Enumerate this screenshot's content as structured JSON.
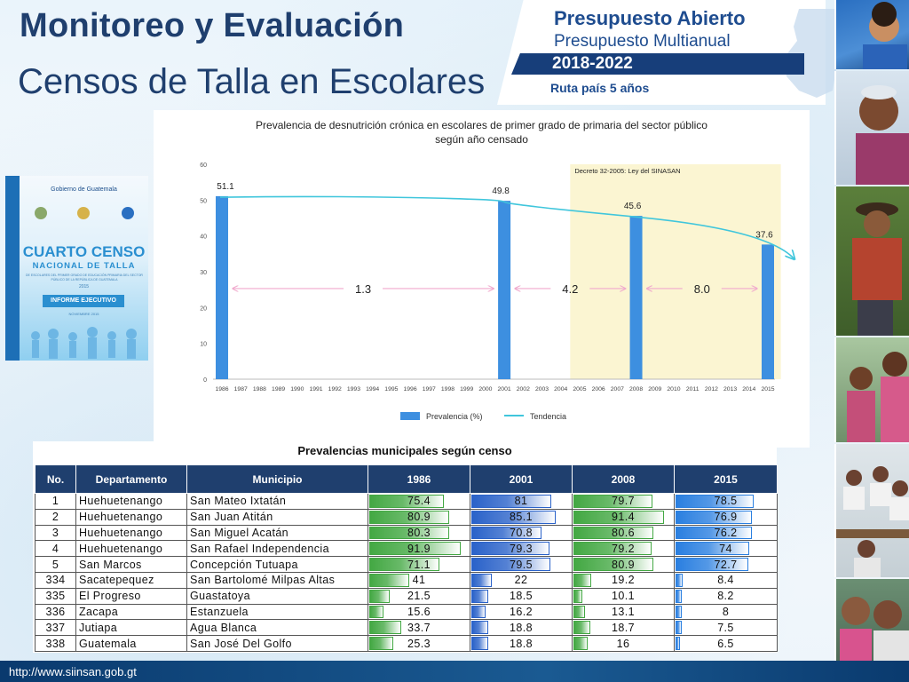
{
  "header": {
    "title": "Monitoreo y Evaluación",
    "subtitle": "Censos de Talla en Escolares"
  },
  "banner": {
    "line1": "Presupuesto Abierto",
    "line2": "Presupuesto Multianual",
    "years": "2018-2022",
    "route": "Ruta país 5 años"
  },
  "booklet": {
    "gov": "Gobierno de Guatemala",
    "title1": "CUARTO CENSO",
    "title2": "NACIONAL DE TALLA",
    "desc": "DE ESCOLARES DEL PRIMER GRADO DE EDUCACIÓN PRIMARIA DEL SECTOR PÚBLICO DE LA REPÚBLICA DE GUATEMALA",
    "year": "2015",
    "report": "INFORME EJECUTIVO",
    "date": "NOVIEMBRE 2015"
  },
  "chart_data": {
    "type": "bar",
    "title_line1": "Prevalencia de desnutrición crónica en escolares de primer grado de primaria del sector público",
    "title_line2": "según año censado",
    "categories": [
      "1986",
      "1987",
      "1988",
      "1989",
      "1990",
      "1991",
      "1992",
      "1993",
      "1994",
      "1995",
      "1996",
      "1997",
      "1998",
      "1999",
      "2000",
      "2001",
      "2002",
      "2003",
      "2004",
      "2005",
      "2006",
      "2007",
      "2008",
      "2009",
      "2010",
      "2011",
      "2012",
      "2013",
      "2014",
      "2015"
    ],
    "series": [
      {
        "name": "Prevalencia (%)",
        "x": [
          "1986",
          "2001",
          "2008",
          "2015"
        ],
        "values": [
          51.1,
          49.8,
          45.6,
          37.6
        ],
        "color": "#3d8fe0"
      }
    ],
    "trend": {
      "name": "Tendencia",
      "color": "#40c6dc"
    },
    "ylim": [
      0,
      60
    ],
    "yticks": [
      0,
      10,
      20,
      30,
      40,
      50,
      60
    ],
    "highlight": {
      "from": "2005",
      "to": "2015",
      "label": "Decreto 32-2005: Ley del SINASAN",
      "color": "#fbf5d2"
    },
    "annotations": [
      {
        "from": "1986",
        "to": "2001",
        "text": "1.3"
      },
      {
        "from": "2001",
        "to": "2008",
        "text": "4.2"
      },
      {
        "from": "2008",
        "to": "2015",
        "text": "8.0"
      }
    ],
    "grid": false,
    "legend": "bottom"
  },
  "table": {
    "title": "Prevalencias municipales según censo",
    "headers": [
      "No.",
      "Departamento",
      "Municipio",
      "1986",
      "2001",
      "2008",
      "2015"
    ],
    "year_colors": [
      "#43a843",
      "#2a62c9",
      "#43a843",
      "#2a7fe0"
    ],
    "rows": [
      {
        "no": "1",
        "dep": "Huehuetenango",
        "mun": "San Mateo Ixtatán",
        "vals": [
          "75.4",
          "81",
          "79.7",
          "78.5"
        ]
      },
      {
        "no": "2",
        "dep": "Huehuetenango",
        "mun": "San Juan Atitán",
        "vals": [
          "80.9",
          "85.1",
          "91.4",
          "76.9"
        ]
      },
      {
        "no": "3",
        "dep": "Huehuetenango",
        "mun": "San Miguel Acatán",
        "vals": [
          "80.3",
          "70.8",
          "80.6",
          "76.2"
        ]
      },
      {
        "no": "4",
        "dep": "Huehuetenango",
        "mun": "San Rafael Independencia",
        "vals": [
          "91.9",
          "79.3",
          "79.2",
          "74"
        ]
      },
      {
        "no": "5",
        "dep": "San Marcos",
        "mun": "Concepción Tutuapa",
        "vals": [
          "71.1",
          "79.5",
          "80.9",
          "72.7"
        ]
      },
      {
        "no": "334",
        "dep": "Sacatepequez",
        "mun": "San Bartolomé Milpas Altas",
        "vals": [
          "41",
          "22",
          "19.2",
          "8.4"
        ]
      },
      {
        "no": "335",
        "dep": "El Progreso",
        "mun": "Guastatoya",
        "vals": [
          "21.5",
          "18.5",
          "10.1",
          "8.2"
        ]
      },
      {
        "no": "336",
        "dep": "Zacapa",
        "mun": "Estanzuela",
        "vals": [
          "15.6",
          "16.2",
          "13.1",
          "8"
        ]
      },
      {
        "no": "337",
        "dep": "Jutiapa",
        "mun": "Agua Blanca",
        "vals": [
          "33.7",
          "18.8",
          "18.7",
          "7.5"
        ]
      },
      {
        "no": "338",
        "dep": "Guatemala",
        "mun": "San José Del Golfo",
        "vals": [
          "25.3",
          "18.8",
          "16",
          "6.5"
        ]
      }
    ]
  },
  "footer": {
    "url": "http://www.siinsan.gob.gt"
  }
}
